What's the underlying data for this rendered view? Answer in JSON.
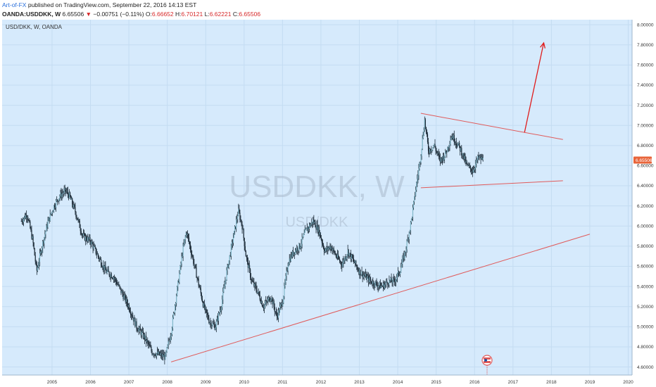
{
  "header": {
    "author": "Art-of-FX",
    "published": " published on TradingView.com, September 22, 2016 14:13 EST",
    "symbol": "OANDA:USDDKK, W",
    "last": "6.65506",
    "change_arrow": "▼",
    "change": "−0.00751 (−0.11%)",
    "o_label": "O:",
    "o_val": "6.66652",
    "h_label": "H:",
    "h_val": "6.70121",
    "l_label": "L:",
    "l_val": "6.62221",
    "c_label": "C:",
    "c_val": "6.65506"
  },
  "chart_title": "USD/DKK, W, OANDA",
  "watermark": {
    "symbol": "USDDKK, W",
    "name": "USD/DKK"
  },
  "price_tag": "6.65506",
  "colors": {
    "plot_bg": "#d6eafc",
    "grid": "#c4dcf2",
    "candle": "#1b2a36",
    "trendline": "#e05a5a",
    "arrow": "#e01b1b",
    "price_tag": "#e8643a",
    "event_marker": "#e05a5a"
  },
  "icons": [
    "event-flag-icon"
  ],
  "chart_data": {
    "type": "line",
    "title": "USD/DKK, W, OANDA",
    "x_ticks": [
      "2005",
      "2006",
      "2007",
      "2008",
      "2009",
      "2010",
      "2011",
      "2012",
      "2013",
      "2014",
      "2015",
      "2016",
      "2017",
      "2018",
      "2019",
      "2020"
    ],
    "y_ticks": [
      "4.60000",
      "4.80000",
      "5.00000",
      "5.20000",
      "5.40000",
      "5.60000",
      "5.80000",
      "6.00000",
      "6.20000",
      "6.40000",
      "6.60000",
      "6.80000",
      "7.00000",
      "7.20000",
      "7.40000",
      "7.60000",
      "7.80000",
      "8.00000"
    ],
    "ylim": [
      4.52,
      8.05
    ],
    "xlim": [
      2004.2,
      2020.6
    ],
    "series": [
      {
        "values_x": [
          2004.7,
          2004.85,
          2005.0,
          2005.1,
          2005.25,
          2005.4,
          2005.55,
          2005.7,
          2005.85,
          2005.95,
          2006.1,
          2006.3,
          2006.5,
          2006.7,
          2006.9,
          2007.1,
          2007.3,
          2007.5,
          2007.7,
          2007.9,
          2008.1,
          2008.3,
          2008.45,
          2008.6,
          2008.75,
          2008.9,
          2009.0,
          2009.15,
          2009.3,
          2009.45,
          2009.6,
          2009.75,
          2009.9,
          2010.05,
          2010.2,
          2010.35,
          2010.45,
          2010.55,
          2010.7,
          2010.85,
          2011.0,
          2011.2,
          2011.35,
          2011.5,
          2011.65,
          2011.8,
          2011.95,
          2012.1,
          2012.3,
          2012.45,
          2012.6,
          2012.75,
          2012.9,
          2013.05,
          2013.2,
          2013.35,
          2013.5,
          2013.65,
          2013.8,
          2013.95,
          2014.1,
          2014.25,
          2014.4,
          2014.55,
          2014.7,
          2014.85,
          2015.0,
          2015.08,
          2015.2,
          2015.3,
          2015.45,
          2015.6,
          2015.75,
          2015.9,
          2016.0,
          2016.15,
          2016.3,
          2016.45,
          2016.6,
          2016.72
        ],
        "values_y": [
          6.05,
          6.12,
          5.85,
          5.55,
          5.82,
          6.05,
          6.2,
          6.3,
          6.35,
          6.3,
          6.15,
          5.9,
          5.85,
          5.7,
          5.55,
          5.5,
          5.35,
          5.2,
          5.0,
          4.9,
          4.75,
          4.72,
          4.7,
          4.95,
          5.35,
          5.75,
          5.95,
          5.7,
          5.45,
          5.2,
          5.05,
          5.0,
          5.2,
          5.55,
          5.85,
          6.15,
          6.0,
          5.7,
          5.45,
          5.35,
          5.2,
          5.3,
          5.1,
          5.25,
          5.65,
          5.75,
          5.8,
          5.95,
          6.05,
          5.95,
          5.75,
          5.8,
          5.7,
          5.62,
          5.75,
          5.65,
          5.55,
          5.5,
          5.45,
          5.42,
          5.4,
          5.45,
          5.45,
          5.55,
          5.75,
          6.05,
          6.45,
          6.65,
          7.05,
          6.75,
          6.8,
          6.65,
          6.72,
          6.9,
          6.85,
          6.75,
          6.6,
          6.55,
          6.68,
          6.66
        ]
      }
    ],
    "annotations": [
      {
        "type": "trendline",
        "from": [
          2008.6,
          4.65
        ],
        "to": [
          2019.5,
          5.92
        ]
      },
      {
        "type": "trendline",
        "from": [
          2015.1,
          7.12
        ],
        "to": [
          2018.8,
          6.86
        ]
      },
      {
        "type": "trendline",
        "from": [
          2015.1,
          6.38
        ],
        "to": [
          2018.8,
          6.45
        ]
      },
      {
        "type": "arrow",
        "from": [
          2017.8,
          6.93
        ],
        "to": [
          2018.3,
          7.82
        ]
      }
    ],
    "last_price": 6.65506
  }
}
